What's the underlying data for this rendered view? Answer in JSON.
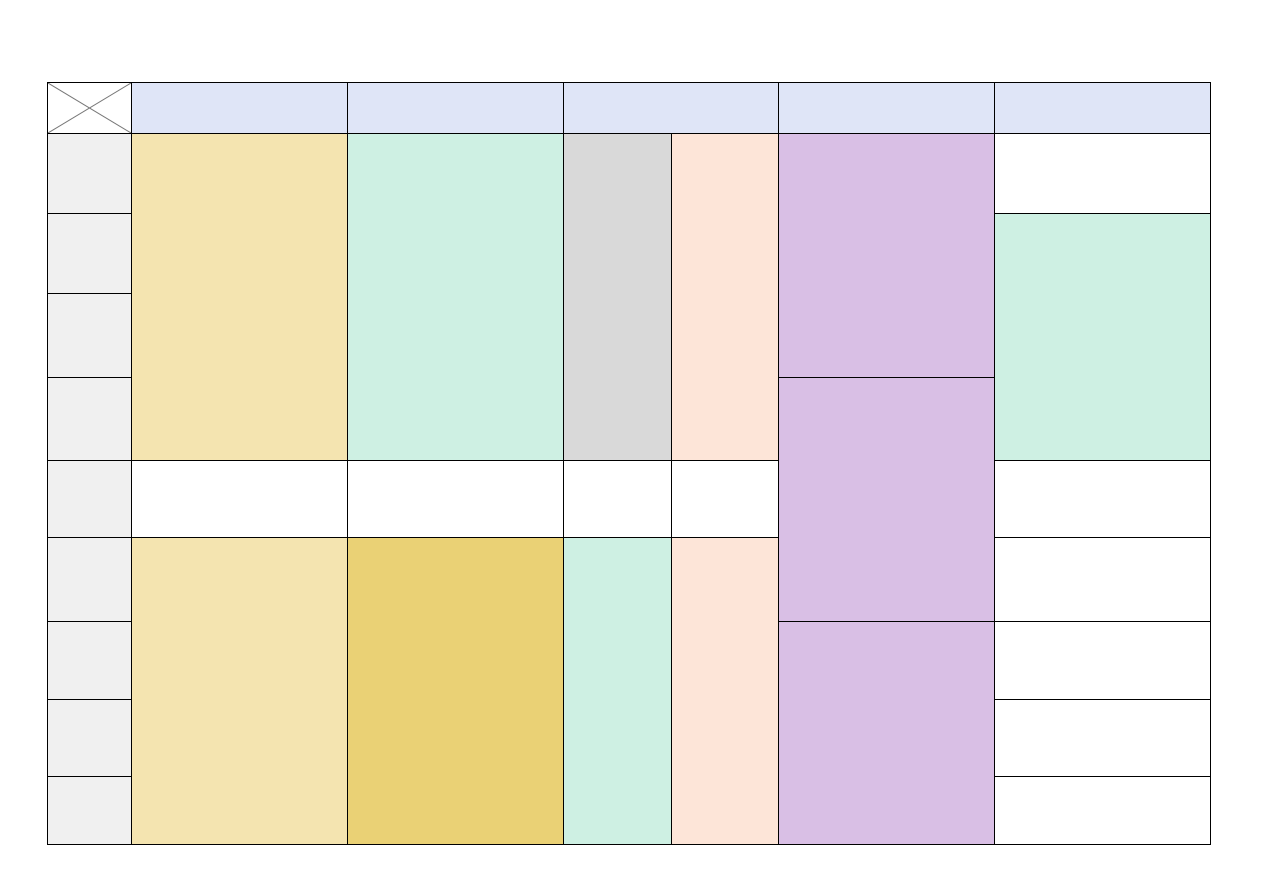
{
  "colors": {
    "header": "#dfe5f7",
    "row_header": "#f0f0f0",
    "yellow": "#f4e4b0",
    "gold": "#ead175",
    "mint": "#cef0e3",
    "gray": "#d9d9d9",
    "peach": "#fde5d8",
    "purple": "#d9bfe5",
    "empty": "#ffffff"
  }
}
